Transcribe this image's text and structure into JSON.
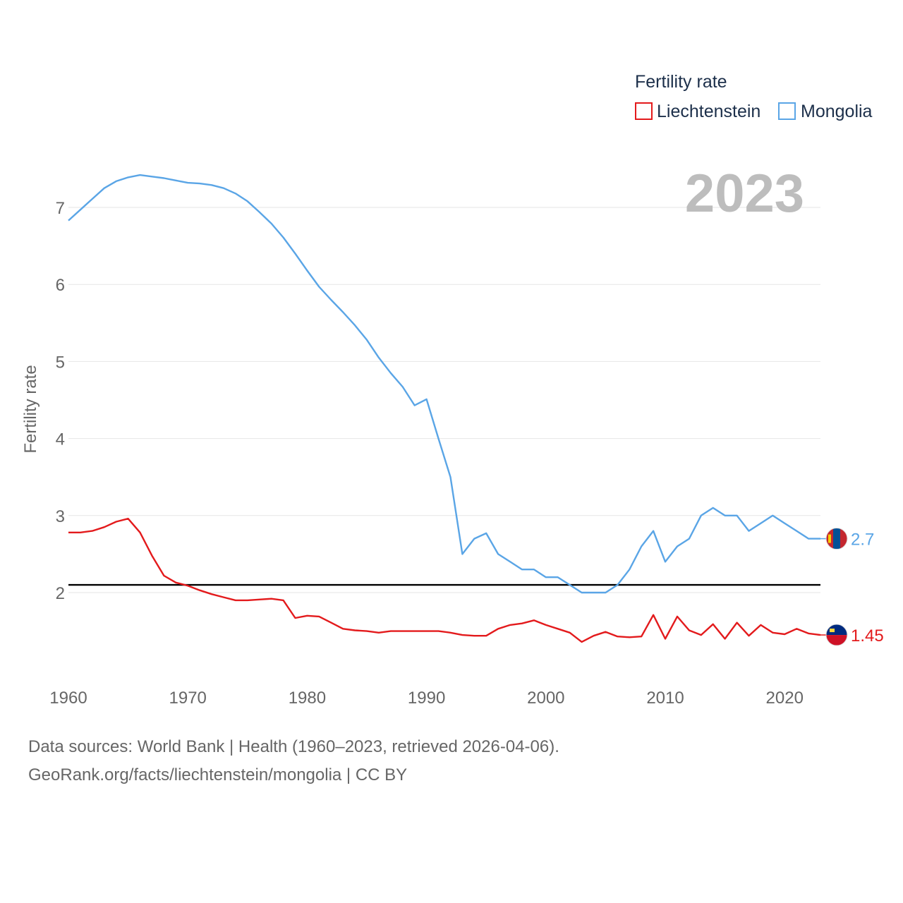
{
  "chart_data": {
    "type": "line",
    "ylabel": "Fertility rate",
    "xlabel": "",
    "year_label": "2023",
    "legend_title": "Fertility rate",
    "x_ticks": [
      "1960",
      "1970",
      "1980",
      "1990",
      "2000",
      "2010",
      "2020"
    ],
    "y_ticks": [
      "2",
      "3",
      "4",
      "5",
      "6",
      "7"
    ],
    "xlim": [
      1960,
      2023
    ],
    "ylim": [
      1.0,
      7.8
    ],
    "reference_line": 2.1,
    "x": [
      1960,
      1961,
      1962,
      1963,
      1964,
      1965,
      1966,
      1967,
      1968,
      1969,
      1970,
      1971,
      1972,
      1973,
      1974,
      1975,
      1976,
      1977,
      1978,
      1979,
      1980,
      1981,
      1982,
      1983,
      1984,
      1985,
      1986,
      1987,
      1988,
      1989,
      1990,
      1991,
      1992,
      1993,
      1994,
      1995,
      1996,
      1997,
      1998,
      1999,
      2000,
      2001,
      2002,
      2003,
      2004,
      2005,
      2006,
      2007,
      2008,
      2009,
      2010,
      2011,
      2012,
      2013,
      2014,
      2015,
      2016,
      2017,
      2018,
      2019,
      2020,
      2021,
      2022,
      2023
    ],
    "series": [
      {
        "name": "Liechtenstein",
        "color": "#e31a1c",
        "end_label": "1.45",
        "flag_icon": "liechtenstein-flag-icon",
        "values": [
          2.78,
          2.78,
          2.8,
          2.85,
          2.92,
          2.96,
          2.78,
          2.48,
          2.22,
          2.13,
          2.09,
          2.03,
          1.98,
          1.94,
          1.9,
          1.9,
          1.91,
          1.92,
          1.9,
          1.67,
          1.7,
          1.69,
          1.61,
          1.53,
          1.51,
          1.5,
          1.48,
          1.5,
          1.5,
          1.5,
          1.5,
          1.5,
          1.48,
          1.45,
          1.44,
          1.44,
          1.53,
          1.58,
          1.6,
          1.64,
          1.58,
          1.53,
          1.48,
          1.36,
          1.44,
          1.49,
          1.43,
          1.42,
          1.43,
          1.71,
          1.4,
          1.69,
          1.51,
          1.45,
          1.59,
          1.4,
          1.61,
          1.44,
          1.58,
          1.48,
          1.46,
          1.53,
          1.47,
          1.45
        ]
      },
      {
        "name": "Mongolia",
        "color": "#5aa5e6",
        "end_label": "2.7",
        "flag_icon": "mongolia-flag-icon",
        "values": [
          6.83,
          6.97,
          7.11,
          7.25,
          7.34,
          7.39,
          7.42,
          7.4,
          7.38,
          7.35,
          7.32,
          7.31,
          7.29,
          7.25,
          7.18,
          7.08,
          6.94,
          6.79,
          6.61,
          6.4,
          6.18,
          5.97,
          5.8,
          5.64,
          5.47,
          5.28,
          5.05,
          4.85,
          4.67,
          4.43,
          4.51,
          4.0,
          3.5,
          2.5,
          2.7,
          2.77,
          2.5,
          2.4,
          2.3,
          2.3,
          2.2,
          2.2,
          2.1,
          2.0,
          2.0,
          2.0,
          2.1,
          2.3,
          2.6,
          2.8,
          2.4,
          2.6,
          2.7,
          3.0,
          3.1,
          3.0,
          3.0,
          2.8,
          2.9,
          3.0,
          2.9,
          2.8,
          2.7,
          2.7
        ]
      }
    ]
  },
  "footer": {
    "line1": "Data sources: World Bank | Health (1960–2023, retrieved 2026-04-06).",
    "line2": "GeoRank.org/facts/liechtenstein/mongolia | CC BY"
  }
}
